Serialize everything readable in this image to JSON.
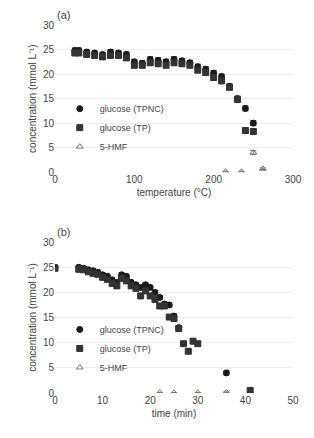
{
  "chart_data": [
    {
      "type": "scatter",
      "annotations": [
        "(a)"
      ],
      "x_label": "temperature (°C)",
      "y_label": "concentration (mmol L⁻¹)",
      "xlim": [
        0,
        300
      ],
      "xticks": [
        0,
        100,
        200,
        300
      ],
      "ylim": [
        0,
        30
      ],
      "yticks": [
        0,
        5,
        10,
        15,
        20,
        25,
        30
      ],
      "grid": "y",
      "legend": "lower left",
      "series": [
        {
          "name": "glucose (TPNC)",
          "color": "#1a1a1a",
          "marker": "circle",
          "x": [
            25,
            30,
            40,
            50,
            60,
            70,
            80,
            90,
            100,
            110,
            120,
            130,
            140,
            150,
            160,
            170,
            180,
            190,
            200,
            210,
            220,
            230,
            240,
            250
          ],
          "values": [
            24.8,
            24.8,
            24.5,
            24.3,
            24.0,
            24.5,
            24.3,
            24.0,
            22.5,
            22.2,
            23.0,
            22.8,
            22.5,
            23.0,
            22.7,
            22.3,
            21.5,
            21.0,
            20.2,
            19.5,
            17.5,
            15.0,
            13.0,
            10.0
          ],
          "yerr": [
            0.5,
            0.5,
            0.4,
            0.4,
            0.4,
            0.5,
            0.4,
            0.5,
            0.5,
            0.5,
            0.5,
            0.5,
            0.5,
            0.5,
            0.5,
            0.5,
            0.5,
            0.5,
            0.5,
            0.5,
            0.5,
            0.5,
            0.5,
            0.5
          ]
        },
        {
          "name": "glucose (TP)",
          "color": "#333333",
          "marker": "square",
          "x": [
            25,
            30,
            40,
            50,
            60,
            70,
            80,
            90,
            100,
            110,
            120,
            130,
            140,
            150,
            160,
            170,
            180,
            190,
            200,
            210,
            220,
            230,
            240,
            250
          ],
          "values": [
            24.3,
            24.3,
            24.0,
            23.8,
            23.5,
            23.8,
            23.8,
            23.3,
            21.8,
            21.8,
            22.3,
            22.1,
            21.8,
            22.3,
            22.1,
            21.8,
            20.8,
            20.3,
            19.3,
            18.6,
            17.3,
            14.8,
            8.5,
            8.3
          ],
          "yerr": [
            0.5,
            0.5,
            0.4,
            0.4,
            0.4,
            0.4,
            0.4,
            0.5,
            0.5,
            0.5,
            0.5,
            0.5,
            0.5,
            0.5,
            0.5,
            0.5,
            0.5,
            0.5,
            0.5,
            0.5,
            0.5,
            0.5,
            0.5,
            0.5
          ]
        },
        {
          "name": "5-HMF",
          "color": "#777777",
          "marker": "triangle-up-open",
          "x": [
            215,
            235,
            250,
            262
          ],
          "values": [
            0.1,
            0.1,
            4.0,
            0.7
          ],
          "yerr": [
            0.1,
            0.1,
            0.4,
            0.15
          ]
        }
      ]
    },
    {
      "type": "scatter",
      "annotations": [
        "(b)"
      ],
      "x_label": "time (min)",
      "y_label": "concentration (mmol L⁻¹)",
      "xlim": [
        0,
        50
      ],
      "xticks": [
        0,
        10,
        20,
        30,
        40,
        50
      ],
      "ylim": [
        0,
        30
      ],
      "yticks": [
        0,
        5,
        10,
        15,
        20,
        25,
        30
      ],
      "grid": "y",
      "legend": "lower left",
      "series": [
        {
          "name": "glucose (TPNC)",
          "color": "#1a1a1a",
          "marker": "circle",
          "x": [
            0,
            5,
            6,
            7,
            8,
            9,
            10,
            11,
            12,
            13,
            14,
            15,
            16,
            17,
            18,
            19,
            20,
            21,
            22,
            23,
            24,
            25,
            26,
            36
          ],
          "values": [
            25.0,
            25.0,
            24.8,
            24.5,
            24.3,
            24.0,
            23.5,
            23.2,
            22.5,
            22.0,
            23.5,
            23.2,
            22.0,
            21.5,
            21.0,
            21.5,
            21.0,
            20.0,
            19.0,
            17.7,
            17.5,
            15.3,
            13.0,
            4.0
          ],
          "yerr": [
            0.4,
            0.4,
            0.4,
            0.4,
            0.4,
            0.4,
            0.4,
            0.4,
            0.4,
            0.4,
            0.4,
            0.4,
            0.4,
            0.4,
            0.4,
            0.4,
            0.4,
            0.4,
            0.4,
            0.4,
            0.4,
            0.4,
            0.4,
            0.4
          ]
        },
        {
          "name": "glucose (TP)",
          "color": "#333333",
          "marker": "square",
          "x": [
            0,
            5,
            6,
            7,
            8,
            9,
            10,
            11,
            12,
            13,
            14,
            15,
            16,
            17,
            18,
            19,
            20,
            21,
            22,
            23,
            24,
            25,
            26,
            27,
            28,
            29,
            30,
            41
          ],
          "values": [
            24.8,
            24.6,
            24.5,
            24.1,
            23.8,
            23.6,
            23.0,
            22.6,
            21.8,
            21.3,
            22.8,
            22.3,
            21.3,
            20.8,
            19.3,
            20.3,
            19.3,
            18.6,
            17.3,
            17.3,
            15.1,
            14.8,
            12.8,
            9.8,
            8.3,
            10.3,
            9.8,
            0.5
          ],
          "yerr": [
            0.4,
            0.4,
            0.4,
            0.4,
            0.4,
            0.4,
            0.4,
            0.4,
            0.4,
            0.4,
            0.4,
            0.4,
            0.4,
            0.4,
            0.4,
            0.4,
            0.4,
            0.4,
            0.4,
            0.4,
            0.4,
            0.4,
            0.4,
            0.4,
            0.4,
            0.4,
            0.4,
            0.4
          ]
        },
        {
          "name": "5-HMF",
          "color": "#777777",
          "marker": "triangle-up-open",
          "x": [
            22,
            25,
            30,
            36
          ],
          "values": [
            0.05,
            0.05,
            0.05,
            0.15
          ],
          "yerr": [
            0.05,
            0.05,
            0.05,
            0.08
          ]
        }
      ]
    }
  ]
}
